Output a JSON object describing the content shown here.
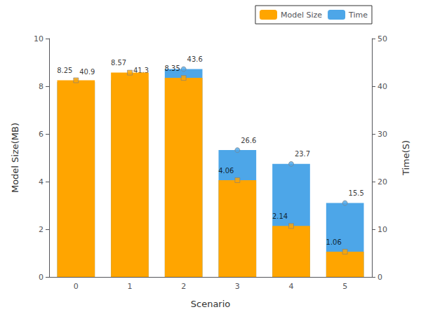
{
  "chart_data": {
    "type": "bar",
    "xlabel": "Scenario",
    "ylabel": "Model Size(MB)",
    "y2label": "Time(S)",
    "categories": [
      "0",
      "1",
      "2",
      "3",
      "4",
      "5"
    ],
    "series": [
      {
        "name": "Model Size",
        "color": "#FFA500",
        "marker": "square",
        "values": [
          8.25,
          8.57,
          8.35,
          4.06,
          2.14,
          1.06
        ]
      },
      {
        "name": "Time",
        "color": "#4DA6E8",
        "marker": "circle",
        "axis": "y2",
        "values": [
          40.9,
          41.3,
          43.6,
          26.6,
          23.7,
          15.5
        ]
      }
    ],
    "ylim": [
      0,
      10
    ],
    "yticks": [
      0,
      2,
      4,
      6,
      8,
      10
    ],
    "y2lim": [
      0,
      50
    ],
    "y2ticks": [
      0,
      10,
      20,
      30,
      40,
      50
    ],
    "grid": false,
    "legend": "upper right",
    "data_labels": true
  }
}
